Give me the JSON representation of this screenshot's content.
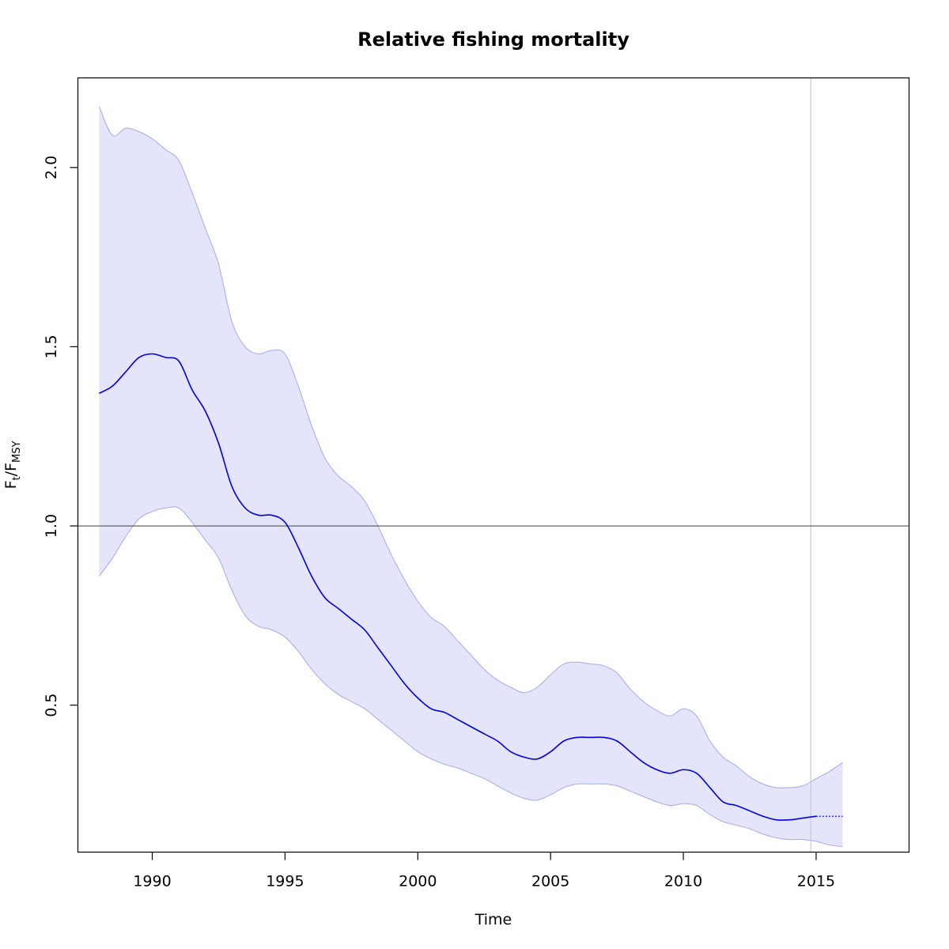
{
  "chart_data": {
    "type": "line",
    "title": "Relative fishing mortality",
    "xlabel": "Time",
    "ylabel": {
      "main": "F",
      "sub1": "t",
      "sep": "/F",
      "sub2": "MSY"
    },
    "xlim": [
      1987.2,
      2018.5
    ],
    "ylim": [
      0.09,
      2.25
    ],
    "xticks": [
      1990,
      1995,
      2000,
      2005,
      2010,
      2015
    ],
    "xtick_labels": [
      "1990",
      "1995",
      "2000",
      "2005",
      "2010",
      "2015"
    ],
    "yticks": [
      0.5,
      1.0,
      1.5,
      2.0
    ],
    "ytick_labels": [
      "0.5",
      "1.0",
      "1.5",
      "2.0"
    ],
    "reference_hline": 1.0,
    "reference_vline": 2014.8,
    "grid": false,
    "colors": {
      "line": "#0000dd",
      "band_fill": "#e4e4fb",
      "band_edge": "#a8a8ee",
      "reference_hline": "#555555",
      "reference_vline": "#cccccc"
    },
    "series": [
      {
        "role": "estimate",
        "x": [
          1988,
          1988.5,
          1989,
          1989.5,
          1990,
          1990.5,
          1991,
          1991.5,
          1992,
          1992.5,
          1993,
          1993.5,
          1994,
          1994.5,
          1995,
          1995.5,
          1996,
          1996.5,
          1997,
          1997.5,
          1998,
          1998.5,
          1999,
          1999.5,
          2000,
          2000.5,
          2001,
          2001.5,
          2002,
          2002.5,
          2003,
          2003.5,
          2004,
          2004.5,
          2005,
          2005.5,
          2006,
          2006.5,
          2007,
          2007.5,
          2008,
          2008.5,
          2009,
          2009.5,
          2010,
          2010.5,
          2011,
          2011.5,
          2012,
          2012.5,
          2013,
          2013.5,
          2014,
          2014.5,
          2015
        ],
        "y": [
          1.37,
          1.39,
          1.43,
          1.47,
          1.48,
          1.47,
          1.46,
          1.38,
          1.32,
          1.23,
          1.11,
          1.05,
          1.03,
          1.03,
          1.01,
          0.94,
          0.86,
          0.8,
          0.77,
          0.74,
          0.71,
          0.66,
          0.61,
          0.56,
          0.52,
          0.49,
          0.48,
          0.46,
          0.44,
          0.42,
          0.4,
          0.37,
          0.355,
          0.35,
          0.37,
          0.4,
          0.41,
          0.41,
          0.41,
          0.4,
          0.37,
          0.34,
          0.32,
          0.31,
          0.32,
          0.31,
          0.27,
          0.23,
          0.22,
          0.205,
          0.19,
          0.18,
          0.18,
          0.185,
          0.19
        ]
      },
      {
        "role": "projection",
        "x": [
          2015,
          2016
        ],
        "y": [
          0.19,
          0.19
        ]
      },
      {
        "role": "lower_ci",
        "x": [
          1988,
          1988.5,
          1989,
          1989.5,
          1990,
          1990.5,
          1991,
          1991.5,
          1992,
          1992.5,
          1993,
          1993.5,
          1994,
          1994.5,
          1995,
          1995.5,
          1996,
          1996.5,
          1997,
          1997.5,
          1998,
          1998.5,
          1999,
          1999.5,
          2000,
          2000.5,
          2001,
          2001.5,
          2002,
          2002.5,
          2003,
          2003.5,
          2004,
          2004.5,
          2005,
          2005.5,
          2006,
          2006.5,
          2007,
          2007.5,
          2008,
          2008.5,
          2009,
          2009.5,
          2010,
          2010.5,
          2011,
          2011.5,
          2012,
          2012.5,
          2013,
          2013.5,
          2014,
          2014.5,
          2015,
          2015.5,
          2016
        ],
        "y": [
          0.86,
          0.91,
          0.97,
          1.02,
          1.04,
          1.05,
          1.05,
          1.01,
          0.96,
          0.91,
          0.82,
          0.75,
          0.72,
          0.71,
          0.69,
          0.65,
          0.6,
          0.56,
          0.53,
          0.51,
          0.49,
          0.46,
          0.43,
          0.4,
          0.37,
          0.35,
          0.335,
          0.325,
          0.31,
          0.295,
          0.275,
          0.255,
          0.24,
          0.235,
          0.25,
          0.27,
          0.28,
          0.28,
          0.28,
          0.275,
          0.26,
          0.245,
          0.23,
          0.22,
          0.225,
          0.22,
          0.195,
          0.175,
          0.165,
          0.155,
          0.14,
          0.13,
          0.125,
          0.125,
          0.12,
          0.11,
          0.105
        ]
      },
      {
        "role": "upper_ci",
        "x": [
          1988,
          1988.5,
          1989,
          1989.5,
          1990,
          1990.5,
          1991,
          1991.5,
          1992,
          1992.5,
          1993,
          1993.5,
          1994,
          1994.5,
          1995,
          1995.5,
          1996,
          1996.5,
          1997,
          1997.5,
          1998,
          1998.5,
          1999,
          1999.5,
          2000,
          2000.5,
          2001,
          2001.5,
          2002,
          2002.5,
          2003,
          2003.5,
          2004,
          2004.5,
          2005,
          2005.5,
          2006,
          2006.5,
          2007,
          2007.5,
          2008,
          2008.5,
          2009,
          2009.5,
          2010,
          2010.5,
          2011,
          2011.5,
          2012,
          2012.5,
          2013,
          2013.5,
          2014,
          2014.5,
          2015,
          2015.5,
          2016
        ],
        "y": [
          2.17,
          2.09,
          2.11,
          2.1,
          2.08,
          2.05,
          2.02,
          1.93,
          1.83,
          1.73,
          1.57,
          1.5,
          1.48,
          1.49,
          1.48,
          1.39,
          1.28,
          1.19,
          1.14,
          1.11,
          1.07,
          1.0,
          0.92,
          0.85,
          0.79,
          0.745,
          0.72,
          0.68,
          0.64,
          0.6,
          0.57,
          0.55,
          0.535,
          0.55,
          0.585,
          0.615,
          0.62,
          0.615,
          0.61,
          0.59,
          0.545,
          0.51,
          0.485,
          0.47,
          0.49,
          0.47,
          0.4,
          0.355,
          0.33,
          0.3,
          0.28,
          0.27,
          0.27,
          0.275,
          0.295,
          0.315,
          0.34
        ]
      }
    ]
  }
}
